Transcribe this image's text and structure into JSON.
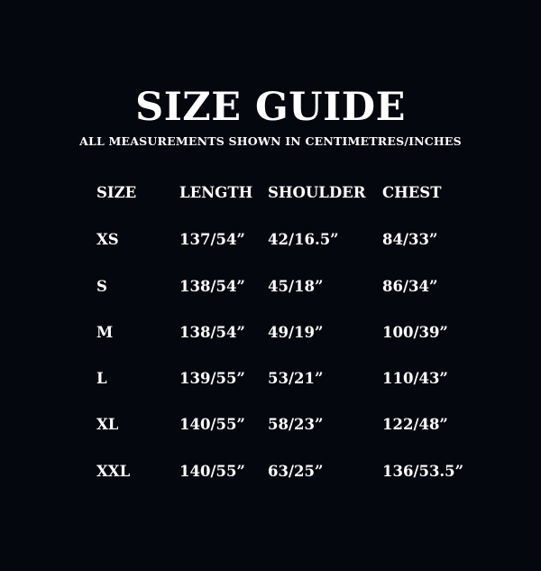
{
  "title": "SIZE GUIDE",
  "subtitle": "ALL MEASUREMENTS SHOWN IN CENTIMETRES/INCHES",
  "table": {
    "headers": [
      "SIZE",
      "LENGTH",
      "SHOULDER",
      "CHEST"
    ],
    "rows": [
      [
        "XS",
        "137/54”",
        "42/16.5”",
        "84/33”"
      ],
      [
        "S",
        "138/54”",
        "45/18”",
        "86/34”"
      ],
      [
        "M",
        "138/54”",
        "49/19”",
        "100/39”"
      ],
      [
        "L",
        "139/55”",
        "53/21”",
        "110/43”"
      ],
      [
        "XL",
        "140/55”",
        "58/23”",
        "122/48”"
      ],
      [
        "XXL",
        "140/55”",
        "63/25”",
        "136/53.5”"
      ]
    ]
  }
}
